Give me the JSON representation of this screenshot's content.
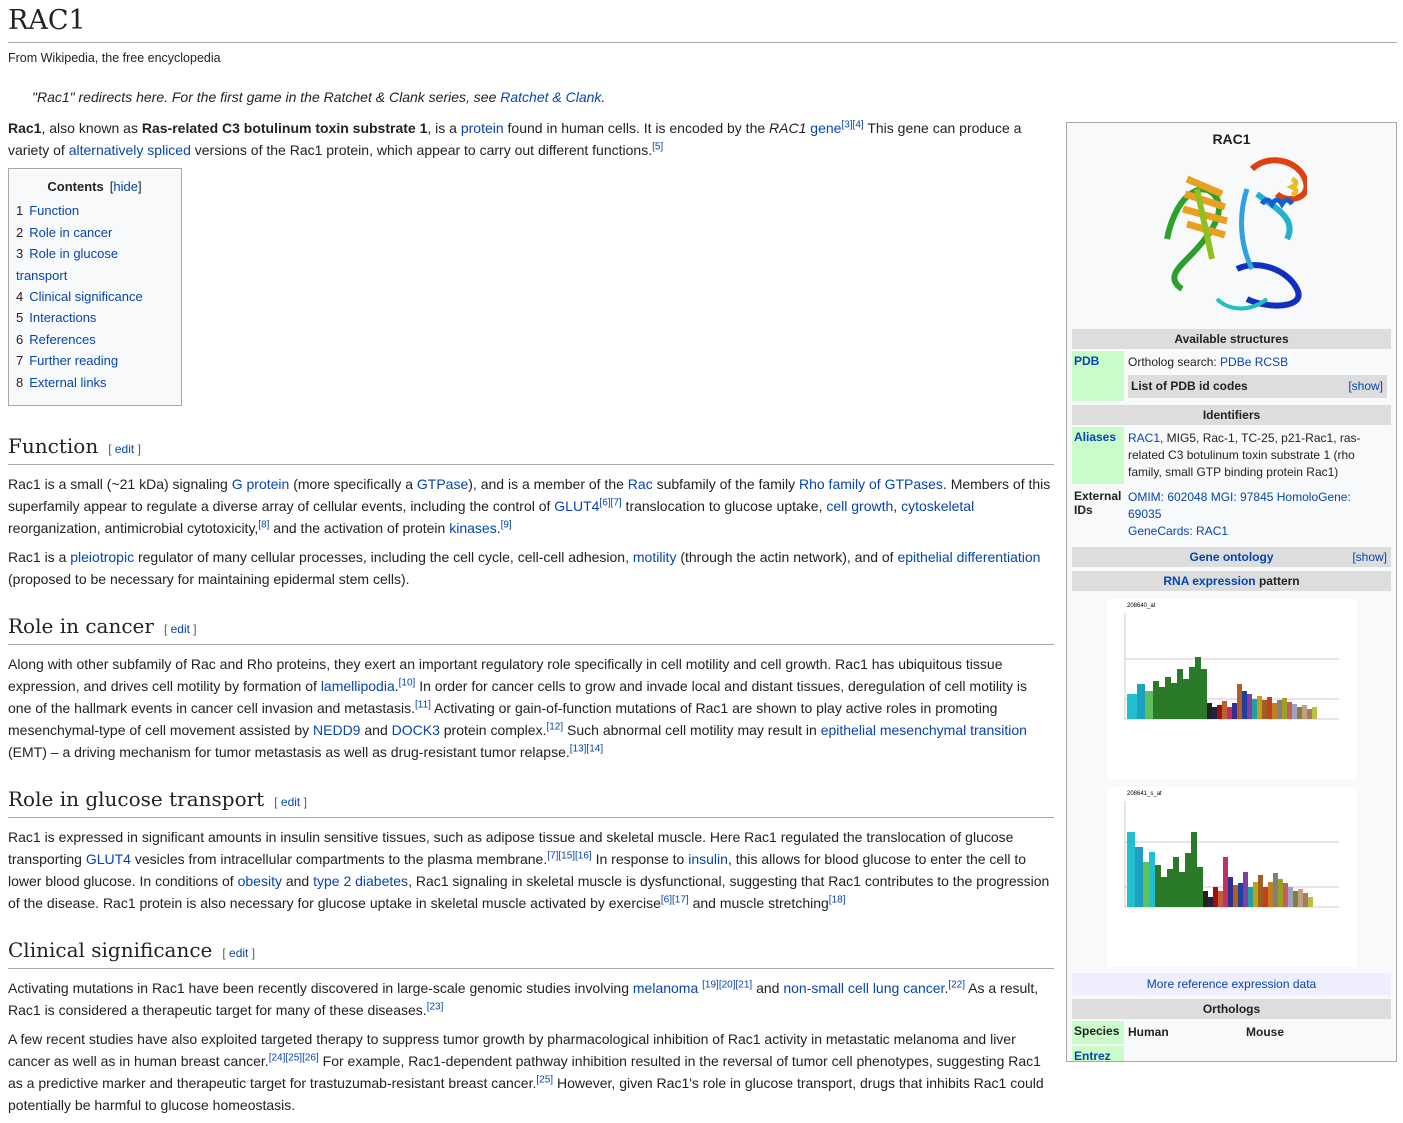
{
  "title": "RAC1",
  "tagline": "From Wikipedia, the free encyclopedia",
  "hatnote": {
    "text": "\"Rac1\" redirects here. For the first game in the Ratchet & Clank series, see ",
    "link": "Ratchet & Clank",
    "end": "."
  },
  "intro": {
    "b1": "Rac1",
    "t1": ", also known as ",
    "b2": "Ras-related C3 botulinum toxin substrate 1",
    "t2": ", is a ",
    "l1": "protein",
    "t3": " found in human cells. It is encoded by the ",
    "i1": "RAC1",
    "t4": " ",
    "l2": "gene",
    "s1": "[3][4]",
    "t5": " This gene can produce a variety of ",
    "l3": "alternatively spliced",
    "t6": " versions of the Rac1 protein, which appear to carry out different functions.",
    "s2": "[5]"
  },
  "toc": {
    "title": "Contents",
    "toggle": "hide",
    "items": [
      {
        "num": "1",
        "label": "Function"
      },
      {
        "num": "2",
        "label": "Role in cancer"
      },
      {
        "num": "3",
        "label": "Role in glucose transport"
      },
      {
        "num": "4",
        "label": "Clinical significance"
      },
      {
        "num": "5",
        "label": "Interactions"
      },
      {
        "num": "6",
        "label": "References"
      },
      {
        "num": "7",
        "label": "Further reading"
      },
      {
        "num": "8",
        "label": "External links"
      }
    ]
  },
  "edit_label": "edit",
  "function": {
    "heading": "Function",
    "p1": {
      "t1": "Rac1 is a small (~21 kDa) signaling ",
      "l1": "G protein",
      "t2": " (more specifically a ",
      "l2": "GTPase",
      "t3": "), and is a member of the ",
      "l3": "Rac",
      "t4": " subfamily of the family ",
      "l4": "Rho family of GTPases",
      "t5": ". Members of this superfamily appear to regulate a diverse array of cellular events, including the control of ",
      "l5": "GLUT4",
      "s1": "[6][7]",
      "t6": " translocation to glucose uptake, ",
      "l6": "cell growth",
      "t7": ", ",
      "l7": "cytoskeletal",
      "t8": " reorganization, antimicrobial cytotoxicity,",
      "s2": "[8]",
      "t9": " and the activation of protein ",
      "l8": "kinases",
      "t10": ".",
      "s3": "[9]"
    },
    "p2": {
      "t1": "Rac1 is a ",
      "l1": "pleiotropic",
      "t2": " regulator of many cellular processes, including the cell cycle, cell-cell adhesion, ",
      "l2": "motility",
      "t3": " (through the actin network), and of ",
      "l3": "epithelial differentiation",
      "t4": " (proposed to be necessary for maintaining epidermal stem cells)."
    }
  },
  "cancer": {
    "heading": "Role in cancer",
    "p1": {
      "t1": "Along with other subfamily of Rac and Rho proteins, they exert an important regulatory role specifically in cell motility and cell growth. Rac1 has ubiquitous tissue expression, and drives cell motility by formation of ",
      "l1": "lamellipodia",
      "t2": ".",
      "s1": "[10]",
      "t3": " In order for cancer cells to grow and invade local and distant tissues, deregulation of cell motility is one of the hallmark events in cancer cell invasion and metastasis.",
      "s2": "[11]",
      "t4": " Activating or gain-of-function mutations of Rac1 are shown to play active roles in promoting mesenchymal-type of cell movement assisted by ",
      "l2": "NEDD9",
      "t5": " and ",
      "l3": "DOCK3",
      "t6": " protein complex.",
      "s3": "[12]",
      "t7": " Such abnormal cell motility may result in ",
      "l4": "epithelial mesenchymal transition",
      "t8": " (EMT) – a driving mechanism for tumor metastasis as well as drug-resistant tumor relapse.",
      "s4": "[13][14]"
    }
  },
  "glucose": {
    "heading": "Role in glucose transport",
    "p1": {
      "t1": "Rac1 is expressed in significant amounts in insulin sensitive tissues, such as adipose tissue and skeletal muscle. Here Rac1 regulated the translocation of glucose transporting ",
      "l1": "GLUT4",
      "t2": " vesicles from intracellular compartments to the plasma membrane.",
      "s1": "[7][15][16]",
      "t3": " In response to ",
      "l2": "insulin",
      "t4": ", this allows for blood glucose to enter the cell to lower blood glucose. In conditions of ",
      "l3": "obesity",
      "t5": " and ",
      "l4": "type 2 diabetes",
      "t6": ", Rac1 signaling in skeletal muscle is dysfunctional, suggesting that Rac1 contributes to the progression of the disease. Rac1 protein is also necessary for glucose uptake in skeletal muscle activated by exercise",
      "s2": "[6][17]",
      "t7": " and muscle stretching",
      "s3": "[18]"
    }
  },
  "clinical": {
    "heading": "Clinical significance",
    "p1": {
      "t1": "Activating mutations in Rac1 have been recently discovered in large-scale genomic studies involving ",
      "l1": "melanoma",
      "t2": " ",
      "s1": "[19][20][21]",
      "t3": " and ",
      "l2": "non-small cell lung cancer",
      "t4": ".",
      "s2": "[22]",
      "t5": " As a result, Rac1 is considered a therapeutic target for many of these diseases.",
      "s3": "[23]"
    },
    "p2": {
      "t1": "A few recent studies have also exploited targeted therapy to suppress tumor growth by pharmacological inhibition of Rac1 activity in metastatic melanoma and liver cancer as well as in human breast cancer.",
      "s1": "[24][25][26]",
      "t2": " For example, Rac1-dependent pathway inhibition resulted in the reversal of tumor cell phenotypes, suggesting Rac1 as a predictive marker and therapeutic target for trastuzumab-resistant breast cancer.",
      "s2": "[25]",
      "t3": " However, given Rac1's role in glucose transport, drugs that inhibits Rac1 could potentially be harmful to glucose homeostasis."
    }
  },
  "infobox": {
    "title": "RAC1",
    "available_structures": "Available structures",
    "pdb_label": "PDB",
    "ortholog_search": "Ortholog search: ",
    "pdbe": "PDBe",
    "rcsb": "RCSB",
    "pdb_list": "List of PDB id codes",
    "show": "[show]",
    "identifiers": "Identifiers",
    "aliases_label": "Aliases",
    "aliases_link": "RAC1",
    "aliases_text": ", MIG5, Rac-1, TC-25, p21-Rac1, ras-related C3 botulinum toxin substrate 1 (rho family, small GTP binding protein Rac1)",
    "extids_label": "External IDs",
    "omim": "OMIM: 602048",
    "mgi": "MGI: 97845",
    "homologene": "HomoloGene: 69035",
    "genecards": "GeneCards: RAC1",
    "gene_ontology": "Gene ontology",
    "rna_link": "RNA expression",
    "rna_text": " pattern",
    "chart1_title": "208640_at",
    "chart2_title": "208641_s_at",
    "more_expression": "More reference expression data",
    "orthologs": "Orthologs",
    "species_label": "Species",
    "human": "Human",
    "mouse": "Mouse",
    "entrez_label": "Entrez"
  },
  "colors": {
    "link": "#0645ad",
    "label_bg": "#c9fcc9",
    "bar_bg": "#dddddd"
  }
}
